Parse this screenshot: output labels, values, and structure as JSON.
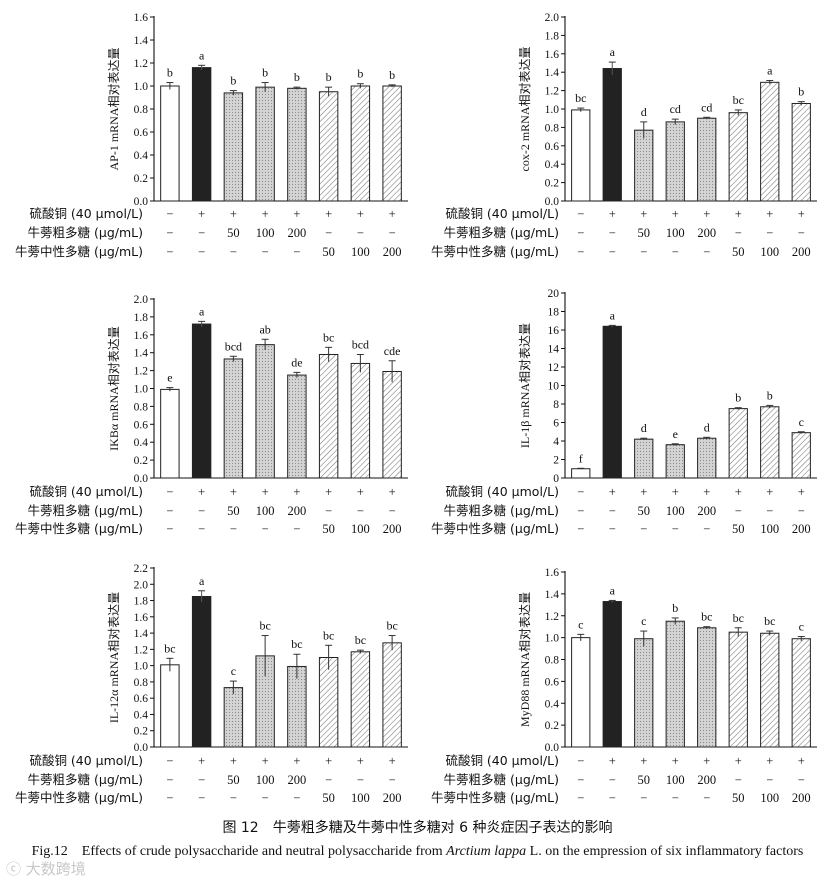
{
  "treatment_labels": [
    "硫酸铜 (40 µmol/L)",
    "牛蒡粗多糖 (µg/mL)",
    "牛蒡中性多糖 (µg/mL)"
  ],
  "treatment_rows": [
    [
      "−",
      "+",
      "+",
      "+",
      "+",
      "+",
      "+",
      "+"
    ],
    [
      "−",
      "−",
      "50",
      "100",
      "200",
      "−",
      "−",
      "−"
    ],
    [
      "−",
      "−",
      "−",
      "−",
      "−",
      "50",
      "100",
      "200"
    ]
  ],
  "styles": {
    "fills": [
      "white",
      "black",
      "dots",
      "dots",
      "dots",
      "hatch",
      "hatch",
      "hatch"
    ],
    "bar_color_dark": "#222222",
    "bar_color_dot": "#cfcfcf"
  },
  "chart_data": [
    {
      "type": "bar",
      "ylabel": "AP-1 mRNA相对表达量",
      "ylim": [
        0,
        1.6
      ],
      "yticks": [
        "0.0",
        "0.2",
        "0.4",
        "0.6",
        "0.8",
        "1.0",
        "1.2",
        "1.4",
        "1.6"
      ],
      "values": [
        1.0,
        1.16,
        0.94,
        0.99,
        0.98,
        0.95,
        1.0,
        1.0
      ],
      "errors": [
        0.03,
        0.02,
        0.02,
        0.04,
        0.01,
        0.04,
        0.02,
        0.01
      ],
      "letters": [
        "b",
        "a",
        "b",
        "b",
        "b",
        "b",
        "b",
        "b"
      ]
    },
    {
      "type": "bar",
      "ylabel": "cox-2 mRNA相对表达量",
      "ylim": [
        0,
        2.0
      ],
      "yticks": [
        "0.0",
        "0.2",
        "0.4",
        "0.6",
        "0.8",
        "1.0",
        "1.2",
        "1.4",
        "1.6",
        "1.8",
        "2.0"
      ],
      "values": [
        0.99,
        1.44,
        0.77,
        0.86,
        0.9,
        0.96,
        1.29,
        1.06
      ],
      "errors": [
        0.02,
        0.07,
        0.09,
        0.03,
        0.01,
        0.03,
        0.02,
        0.02
      ],
      "letters": [
        "bc",
        "a",
        "d",
        "cd",
        "cd",
        "bc",
        "a",
        "b"
      ]
    },
    {
      "type": "bar",
      "ylabel": "IKBα mRNA相对表达量",
      "ylim": [
        0,
        2.0
      ],
      "yticks": [
        "0.0",
        "0.2",
        "0.4",
        "0.6",
        "0.8",
        "1.0",
        "1.2",
        "1.4",
        "1.6",
        "1.8",
        "2.0"
      ],
      "values": [
        0.99,
        1.72,
        1.33,
        1.49,
        1.15,
        1.38,
        1.28,
        1.19
      ],
      "errors": [
        0.02,
        0.03,
        0.03,
        0.06,
        0.03,
        0.08,
        0.1,
        0.12
      ],
      "letters": [
        "e",
        "a",
        "bcd",
        "ab",
        "de",
        "bc",
        "bcd",
        "cde"
      ]
    },
    {
      "type": "bar",
      "ylabel": "IL-1β mRNA相对表达量",
      "ylim": [
        0,
        20
      ],
      "yticks": [
        "0",
        "2",
        "4",
        "6",
        "8",
        "10",
        "12",
        "14",
        "16",
        "18",
        "20"
      ],
      "values": [
        1.0,
        16.4,
        4.2,
        3.6,
        4.3,
        7.5,
        7.7,
        4.9
      ],
      "errors": [
        0.05,
        0.1,
        0.1,
        0.1,
        0.1,
        0.1,
        0.15,
        0.1
      ],
      "letters": [
        "f",
        "a",
        "d",
        "e",
        "d",
        "b",
        "b",
        "c"
      ]
    },
    {
      "type": "bar",
      "ylabel": "IL-12α mRNA相对表达量",
      "ylim": [
        0,
        2.2
      ],
      "yticks": [
        "0.0",
        "0.2",
        "0.4",
        "0.6",
        "0.8",
        "1.0",
        "1.2",
        "1.4",
        "1.6",
        "1.8",
        "2.0",
        "2.2"
      ],
      "values": [
        1.01,
        1.85,
        0.73,
        1.12,
        0.99,
        1.1,
        1.17,
        1.28
      ],
      "errors": [
        0.08,
        0.07,
        0.08,
        0.25,
        0.15,
        0.15,
        0.02,
        0.09
      ],
      "letters": [
        "bc",
        "a",
        "c",
        "bc",
        "bc",
        "bc",
        "bc",
        "bc"
      ]
    },
    {
      "type": "bar",
      "ylabel": "MyD88 mRNA相对表达量",
      "ylim": [
        0,
        1.6
      ],
      "yticks": [
        "0.0",
        "0.2",
        "0.4",
        "0.6",
        "0.8",
        "1.0",
        "1.2",
        "1.4",
        "1.6"
      ],
      "values": [
        1.0,
        1.33,
        0.99,
        1.15,
        1.09,
        1.05,
        1.04,
        0.99
      ],
      "errors": [
        0.03,
        0.01,
        0.07,
        0.03,
        0.01,
        0.04,
        0.02,
        0.02
      ],
      "letters": [
        "c",
        "a",
        "c",
        "b",
        "bc",
        "bc",
        "bc",
        "c"
      ]
    }
  ],
  "caption": {
    "zh": "图 12　牛蒡粗多糖及牛蒡中性多糖对 6 种炎症因子表达的影响",
    "en_prefix": "Fig.12　Effects of crude polysaccharide and neutral polysaccharide from ",
    "en_italic": "Arctium lappa",
    "en_suffix": " L. on the empression of six inflammatory factors"
  },
  "watermark": "ⓒ 大数跨境"
}
